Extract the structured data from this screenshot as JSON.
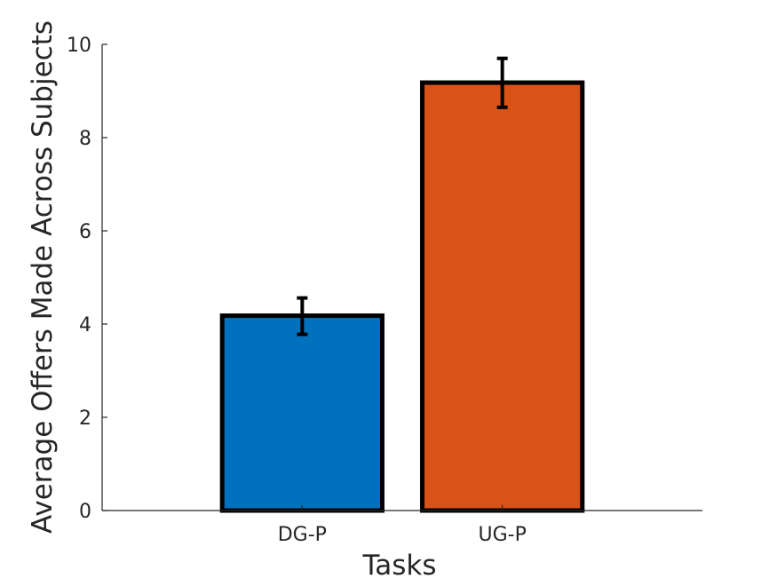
{
  "chart_data": {
    "type": "bar",
    "title": "",
    "xlabel": "Tasks",
    "ylabel": "Average Offers Made Across Subjects",
    "categories": [
      "DG-P",
      "UG-P"
    ],
    "values": [
      4.18,
      9.18
    ],
    "error": [
      {
        "low": 3.78,
        "high": 4.56
      },
      {
        "low": 8.65,
        "high": 9.7
      }
    ],
    "bar_colors": [
      "#0072BD",
      "#D95319"
    ],
    "edge_color": "#000000",
    "ylim": [
      0,
      10
    ],
    "yticks": [
      0,
      2,
      4,
      6,
      8,
      10
    ],
    "ytick_labels": [
      "0",
      "2",
      "4",
      "6",
      "8",
      "10"
    ],
    "xlim": [
      0,
      3
    ],
    "grid": false,
    "legend": "none"
  }
}
